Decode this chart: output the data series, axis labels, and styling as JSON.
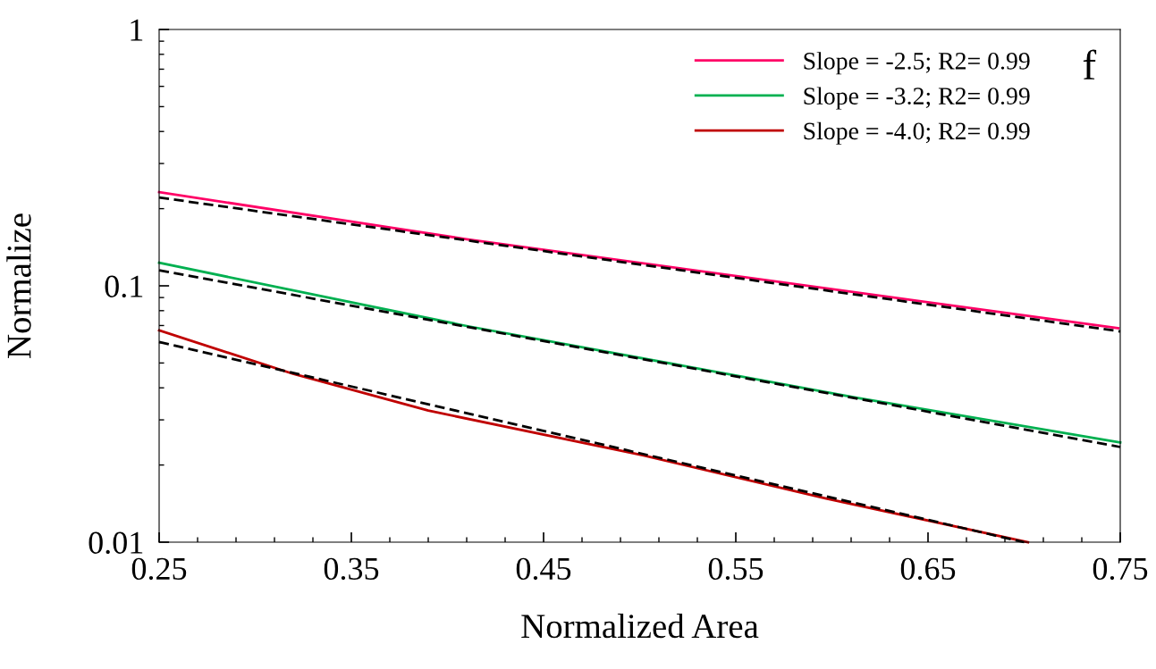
{
  "chart_data": {
    "type": "line",
    "xlabel": "Normalized Area",
    "ylabel": "Normalize",
    "log": "y",
    "xlim": [
      0.25,
      0.75
    ],
    "ylim": [
      0.01,
      1
    ],
    "xticks": [
      0.25,
      0.35,
      0.45,
      0.55,
      0.65,
      0.75
    ],
    "yticks": [
      0.01,
      0.1,
      1
    ],
    "legend": "top right",
    "grid": false,
    "line_style": "solid",
    "marker": "none",
    "annotations": [
      "f"
    ],
    "series": [
      {
        "name": "Slope = -2.5; R2= 0.99",
        "color": "#ff0066",
        "x": [
          0.25,
          0.41,
          0.749
        ],
        "values": [
          0.232,
          0.152,
          0.0683
        ]
      },
      {
        "name": "Slope = -3.2; R2= 0.99",
        "color": "#00b050",
        "x": [
          0.25,
          0.41,
          0.613,
          0.75
        ],
        "values": [
          0.123,
          0.0697,
          0.0366,
          0.0245
        ]
      },
      {
        "name": "Slope = -4.0; R2= 0.99",
        "color": "#c00000",
        "x": [
          0.25,
          0.32,
          0.39,
          0.502,
          0.597,
          0.702
        ],
        "values": [
          0.067,
          0.0453,
          0.0326,
          0.0218,
          0.0148,
          0.01
        ]
      },
      {
        "color": "#000000",
        "line_style": "dashed",
        "x": [
          0.25,
          0.75
        ],
        "values": [
          0.221,
          0.0664
        ]
      },
      {
        "color": "#000000",
        "line_style": "dashed",
        "x": [
          0.25,
          0.75
        ],
        "values": [
          0.115,
          0.0235
        ]
      },
      {
        "color": "#000000",
        "line_style": "dashed",
        "x": [
          0.25,
          0.7
        ],
        "values": [
          0.0604,
          0.01
        ]
      }
    ]
  }
}
